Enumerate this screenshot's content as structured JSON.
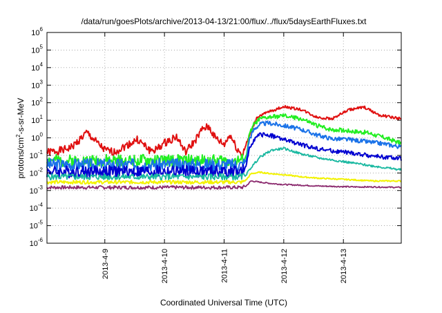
{
  "chart_data": {
    "type": "line",
    "title": "/data/run/goesPlots/archive/2013-04-13/21:00/flux/../flux/5daysEarthFluxes.txt",
    "xlabel": "Coordinated Universal Time (UTC)",
    "ylabel": {
      "prefix": "protons/cm",
      "sup": "2",
      "suffix": "-s-sr-MeV"
    },
    "y_scale": "log",
    "ylim_exp": [
      -6,
      6
    ],
    "y_tick_labels": [
      {
        "exp": -6,
        "base": "10",
        "sup": "-6"
      },
      {
        "exp": -5,
        "base": "10",
        "sup": "-5"
      },
      {
        "exp": -4,
        "base": "10",
        "sup": "-4"
      },
      {
        "exp": -3,
        "base": "10",
        "sup": "-3"
      },
      {
        "exp": -2,
        "base": "10",
        "sup": "-2"
      },
      {
        "exp": -1,
        "base": "10",
        "sup": "-1"
      },
      {
        "exp": 0,
        "base": "10",
        "sup": "0"
      },
      {
        "exp": 1,
        "base": "10",
        "sup": "1"
      },
      {
        "exp": 2,
        "base": "10",
        "sup": "2"
      },
      {
        "exp": 3,
        "base": "10",
        "sup": "3"
      },
      {
        "exp": 4,
        "base": "10",
        "sup": "4"
      },
      {
        "exp": 5,
        "base": "10",
        "sup": "5"
      },
      {
        "exp": 6,
        "base": "10",
        "sup": "6"
      }
    ],
    "x_range_days": [
      -0.97,
      4.97
    ],
    "x_ticks": [
      {
        "day": 0,
        "label": "2013-4-9"
      },
      {
        "day": 1,
        "label": "2013-4-10"
      },
      {
        "day": 2,
        "label": "2013-4-11"
      },
      {
        "day": 3,
        "label": "2013-4-12"
      },
      {
        "day": 4,
        "label": "2013-4-13"
      }
    ],
    "grid": true,
    "series": [
      {
        "color": "#e01010",
        "width": 2.0,
        "x": [
          -0.97,
          -0.7,
          -0.55,
          -0.3,
          -0.15,
          0.0,
          0.15,
          0.35,
          0.55,
          0.75,
          0.85,
          1.0,
          1.2,
          1.35,
          1.5,
          1.65,
          1.75,
          1.85,
          2.0,
          2.1,
          2.2,
          2.3,
          2.4,
          2.55,
          2.75,
          3.0,
          3.3,
          3.55,
          3.8,
          4.1,
          4.35,
          4.6,
          4.8,
          4.97
        ],
        "y": [
          0.15,
          0.2,
          0.3,
          2.0,
          0.6,
          0.2,
          0.15,
          0.35,
          0.8,
          0.2,
          0.2,
          0.5,
          1.2,
          0.15,
          0.6,
          3.5,
          4.0,
          1.0,
          0.4,
          1.5,
          0.3,
          0.1,
          0.8,
          15,
          30,
          60,
          40,
          15,
          12,
          40,
          55,
          20,
          15,
          12
        ],
        "noise": 0.22,
        "seed": 1
      },
      {
        "color": "#22ee22",
        "width": 2.0,
        "x": [
          -0.97,
          0.0,
          1.0,
          2.0,
          2.3,
          2.37,
          2.42,
          2.5,
          2.6,
          2.75,
          3.0,
          3.3,
          3.55,
          3.8,
          4.1,
          4.4,
          4.7,
          4.97
        ],
        "y": [
          0.05,
          0.05,
          0.05,
          0.05,
          0.05,
          0.08,
          1.5,
          6.0,
          12,
          15,
          18,
          12,
          5.0,
          3.0,
          2.5,
          2.0,
          1.0,
          0.5
        ],
        "noise": 0.35,
        "seed": 2
      },
      {
        "color": "#1a72e8",
        "width": 2.0,
        "x": [
          -0.97,
          0.0,
          1.0,
          2.0,
          2.3,
          2.37,
          2.42,
          2.5,
          2.6,
          2.75,
          3.0,
          3.3,
          3.55,
          3.8,
          4.1,
          4.4,
          4.7,
          4.97
        ],
        "y": [
          0.03,
          0.03,
          0.03,
          0.03,
          0.03,
          0.05,
          0.8,
          3.0,
          6.0,
          7.0,
          5.0,
          3.0,
          1.5,
          0.9,
          0.8,
          0.6,
          0.45,
          0.3
        ],
        "noise": 0.35,
        "seed": 3
      },
      {
        "color": "#0000d0",
        "width": 2.0,
        "x": [
          -0.97,
          0.0,
          1.0,
          2.0,
          2.3,
          2.37,
          2.42,
          2.5,
          2.6,
          2.75,
          3.0,
          3.3,
          3.55,
          3.8,
          4.1,
          4.4,
          4.7,
          4.97
        ],
        "y": [
          0.012,
          0.012,
          0.012,
          0.012,
          0.012,
          0.02,
          0.25,
          0.8,
          1.5,
          1.5,
          0.8,
          0.4,
          0.25,
          0.18,
          0.14,
          0.1,
          0.08,
          0.065
        ],
        "noise": 0.35,
        "seed": 4
      },
      {
        "color": "#18b8a0",
        "width": 1.8,
        "x": [
          -0.97,
          0.0,
          1.0,
          2.0,
          2.3,
          2.37,
          2.45,
          2.6,
          2.8,
          3.0,
          3.3,
          3.6,
          3.9,
          4.2,
          4.5,
          4.8,
          4.97
        ],
        "y": [
          0.006,
          0.006,
          0.006,
          0.006,
          0.006,
          0.008,
          0.02,
          0.08,
          0.2,
          0.25,
          0.12,
          0.07,
          0.05,
          0.035,
          0.025,
          0.018,
          0.015
        ],
        "noise": 0.18,
        "seed": 5
      },
      {
        "color": "#f2f200",
        "width": 2.0,
        "x": [
          -0.97,
          0.0,
          1.0,
          2.0,
          2.3,
          2.37,
          2.45,
          2.6,
          2.8,
          3.0,
          3.3,
          3.6,
          3.9,
          4.2,
          4.5,
          4.97
        ],
        "y": [
          0.003,
          0.003,
          0.003,
          0.003,
          0.003,
          0.004,
          0.009,
          0.011,
          0.009,
          0.008,
          0.006,
          0.005,
          0.0045,
          0.004,
          0.0035,
          0.0035
        ],
        "noise": 0.1,
        "seed": 6
      },
      {
        "color": "#8b2a6e",
        "width": 1.8,
        "x": [
          -0.97,
          0.0,
          1.0,
          2.0,
          2.3,
          2.37,
          2.45,
          2.6,
          2.8,
          3.0,
          3.3,
          3.6,
          3.9,
          4.2,
          4.5,
          4.97
        ],
        "y": [
          0.0015,
          0.0015,
          0.0015,
          0.0015,
          0.0015,
          0.0018,
          0.0035,
          0.003,
          0.0025,
          0.0022,
          0.002,
          0.0018,
          0.0017,
          0.0016,
          0.0016,
          0.0015
        ],
        "noise": 0.1,
        "seed": 7
      }
    ]
  }
}
